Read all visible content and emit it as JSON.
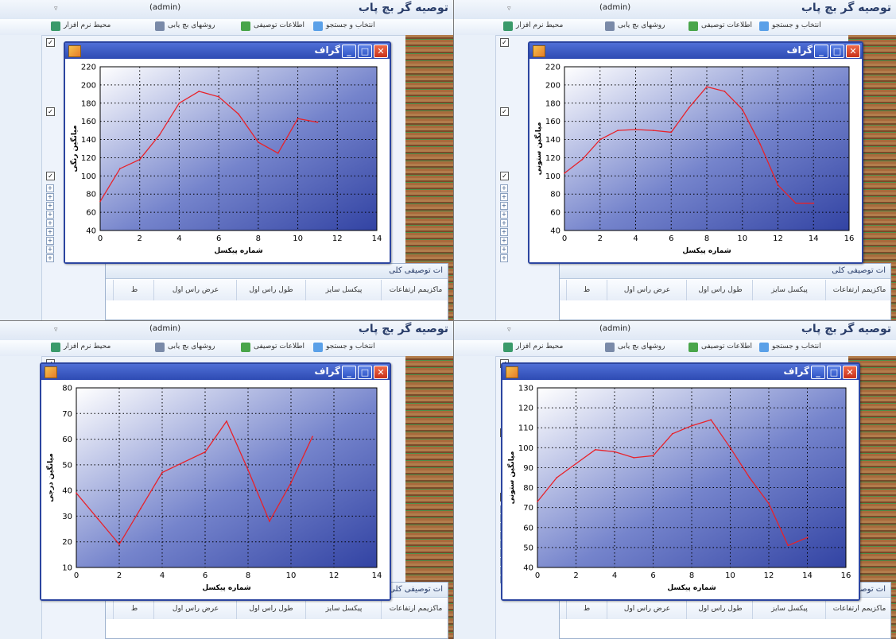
{
  "app": {
    "title": "توصیه گر بچ پاب",
    "user": "(admin)"
  },
  "menu": [
    {
      "label": "انتخاب و جستجو",
      "icon": "search-pencil-icon"
    },
    {
      "label": "اطلاعات توصیفی",
      "icon": "info-globe-icon"
    },
    {
      "label": "روشهای بچ یابی",
      "icon": "gears-icon"
    },
    {
      "label": "محیط نرم افزار",
      "icon": "monitor-icon"
    }
  ],
  "graph_window": {
    "title": "گراف",
    "min_glyph": "_",
    "max_glyph": "□",
    "close_glyph": "✕"
  },
  "table": {
    "caption": "ات توصیفی کلی",
    "headers": [
      "ماکزیمم ارتفاعات",
      "پیکسل سایز",
      "طول راس اول",
      "عرض راس اول",
      "ط"
    ]
  },
  "colors": {
    "plot_line": "#e8222a",
    "plot_bg_light": "#ffffff",
    "plot_bg_dark": "#3243a3",
    "window_frame": "#2c45a0"
  },
  "chart_data": [
    {
      "type": "line",
      "xlabel": "شماره پیکسل",
      "ylabel": "میانگین رنگی",
      "xlim": [
        0,
        14
      ],
      "ylim": [
        40,
        220
      ],
      "xticks": [
        0,
        2,
        4,
        6,
        8,
        10,
        12,
        14
      ],
      "yticks": [
        40,
        60,
        80,
        100,
        120,
        140,
        160,
        180,
        200,
        220
      ],
      "grid": true,
      "x": [
        0,
        1,
        2,
        3,
        4,
        5,
        6,
        7,
        8,
        9,
        10,
        11
      ],
      "y": [
        72,
        108,
        118,
        145,
        180,
        193,
        187,
        168,
        137,
        125,
        163,
        159
      ]
    },
    {
      "type": "line",
      "xlabel": "شماره پیکسل",
      "ylabel": "میانگین ستونی",
      "xlim": [
        0,
        16
      ],
      "ylim": [
        40,
        220
      ],
      "xticks": [
        0,
        2,
        4,
        6,
        8,
        10,
        12,
        14,
        16
      ],
      "yticks": [
        40,
        60,
        80,
        100,
        120,
        140,
        160,
        180,
        200,
        220
      ],
      "grid": true,
      "x": [
        0,
        1,
        2,
        3,
        4,
        5,
        6,
        7,
        8,
        9,
        10,
        11,
        12,
        13,
        14
      ],
      "y": [
        103,
        118,
        140,
        150,
        151,
        150,
        148,
        175,
        198,
        193,
        173,
        135,
        90,
        70,
        70
      ]
    },
    {
      "type": "line",
      "xlabel": "شماره پیکسل",
      "ylabel": "میانگین درجی",
      "xlim": [
        0,
        14
      ],
      "ylim": [
        10,
        80
      ],
      "xticks": [
        0,
        2,
        4,
        6,
        8,
        10,
        12,
        14
      ],
      "yticks": [
        10,
        20,
        30,
        40,
        50,
        60,
        70,
        80
      ],
      "grid": true,
      "x": [
        0,
        1,
        2,
        3,
        4,
        5,
        6,
        7,
        8,
        9,
        10,
        11
      ],
      "y": [
        39,
        29,
        19,
        33,
        47,
        51,
        55,
        67,
        48,
        28,
        43,
        61
      ]
    },
    {
      "type": "line",
      "xlabel": "شماره پیکسل",
      "ylabel": "میانگین ستونی",
      "xlim": [
        0,
        16
      ],
      "ylim": [
        40,
        130
      ],
      "xticks": [
        0,
        2,
        4,
        6,
        8,
        10,
        12,
        14,
        16
      ],
      "yticks": [
        40,
        50,
        60,
        70,
        80,
        90,
        100,
        110,
        120,
        130
      ],
      "grid": true,
      "x": [
        0,
        1,
        2,
        3,
        4,
        5,
        6,
        7,
        8,
        9,
        10,
        11,
        12,
        13,
        14
      ],
      "y": [
        73,
        85,
        92,
        99,
        98,
        95,
        96,
        107,
        111,
        114,
        100,
        85,
        72,
        51,
        55
      ]
    }
  ]
}
